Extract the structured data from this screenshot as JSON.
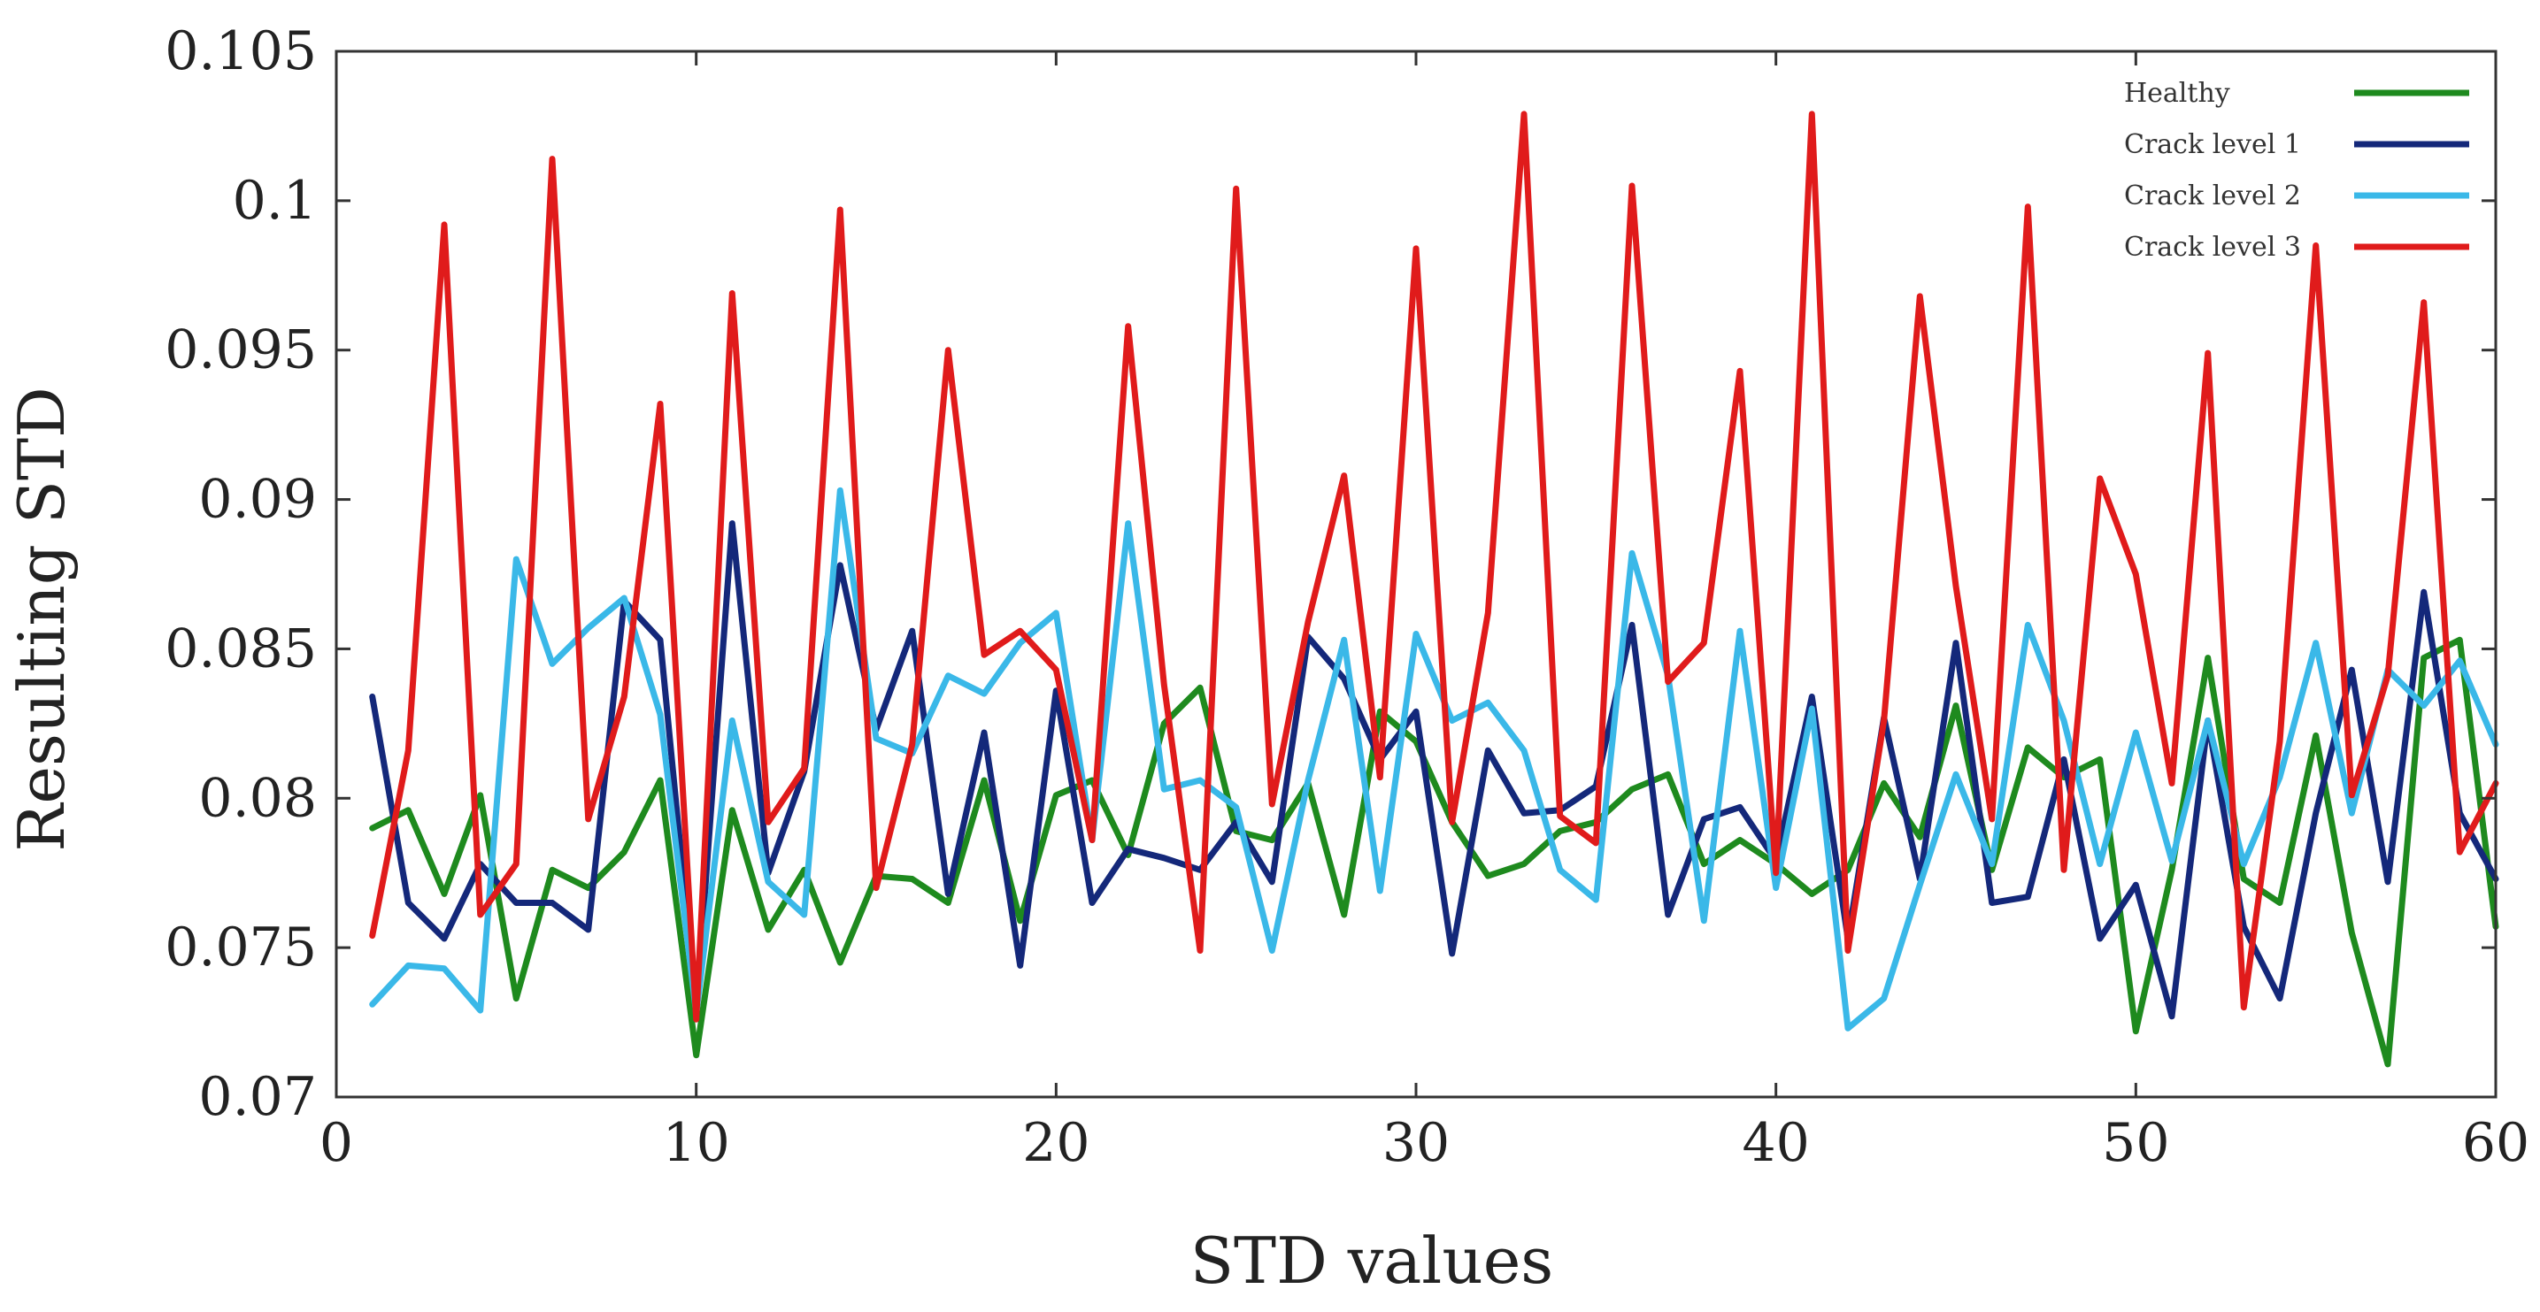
{
  "chart_data": {
    "type": "line",
    "title": "",
    "xlabel": "STD values",
    "ylabel": "Resulting STD",
    "xlim": [
      0,
      60
    ],
    "ylim": [
      0.07,
      0.105
    ],
    "xticks": [
      0,
      10,
      20,
      30,
      40,
      50,
      60
    ],
    "xtick_labels": [
      "0",
      "10",
      "20",
      "30",
      "40",
      "50",
      "60"
    ],
    "yticks": [
      0.07,
      0.075,
      0.08,
      0.085,
      0.09,
      0.095,
      0.1,
      0.105
    ],
    "ytick_labels": [
      "0.07",
      "0.075",
      "0.08",
      "0.085",
      "0.09",
      "0.095",
      "0.1",
      "0.105"
    ],
    "grid": false,
    "legend_position": "top-right",
    "x": [
      1,
      2,
      3,
      4,
      5,
      6,
      7,
      8,
      9,
      10,
      11,
      12,
      13,
      14,
      15,
      16,
      17,
      18,
      19,
      20,
      21,
      22,
      23,
      24,
      25,
      26,
      27,
      28,
      29,
      30,
      31,
      32,
      33,
      34,
      35,
      36,
      37,
      38,
      39,
      40,
      41,
      42,
      43,
      44,
      45,
      46,
      47,
      48,
      49,
      50,
      51,
      52,
      53,
      54,
      55,
      56,
      57,
      58,
      59,
      60
    ],
    "series": [
      {
        "name": "Healthy",
        "color": "#1e8a1e",
        "values": [
          0.079,
          0.0796,
          0.0768,
          0.0801,
          0.0733,
          0.0776,
          0.077,
          0.0782,
          0.0806,
          0.0714,
          0.0796,
          0.0756,
          0.0776,
          0.0745,
          0.0774,
          0.0773,
          0.0765,
          0.0806,
          0.0759,
          0.0801,
          0.0806,
          0.0781,
          0.0825,
          0.0837,
          0.0789,
          0.0786,
          0.0805,
          0.0761,
          0.0829,
          0.0819,
          0.0792,
          0.0774,
          0.0778,
          0.0789,
          0.0792,
          0.0803,
          0.0808,
          0.0778,
          0.0786,
          0.0778,
          0.0768,
          0.0776,
          0.0805,
          0.0787,
          0.0831,
          0.0776,
          0.0817,
          0.0807,
          0.0813,
          0.0722,
          0.0776,
          0.0847,
          0.0773,
          0.0765,
          0.0821,
          0.0755,
          0.0711,
          0.0847,
          0.0853,
          0.0757
        ]
      },
      {
        "name": "Crack level 1",
        "color": "#14287a",
        "values": [
          0.0834,
          0.0765,
          0.0753,
          0.0778,
          0.0765,
          0.0765,
          0.0756,
          0.0866,
          0.0853,
          0.0729,
          0.0892,
          0.0775,
          0.0809,
          0.0878,
          0.0823,
          0.0856,
          0.0768,
          0.0822,
          0.0744,
          0.0836,
          0.0765,
          0.0783,
          0.078,
          0.0776,
          0.0792,
          0.0772,
          0.0854,
          0.084,
          0.0813,
          0.0829,
          0.0748,
          0.0816,
          0.0795,
          0.0796,
          0.0804,
          0.0858,
          0.0761,
          0.0793,
          0.0797,
          0.0779,
          0.0834,
          0.0753,
          0.0827,
          0.0773,
          0.0852,
          0.0765,
          0.0767,
          0.0813,
          0.0753,
          0.0771,
          0.0727,
          0.0826,
          0.0757,
          0.0733,
          0.0795,
          0.0843,
          0.0772,
          0.0869,
          0.0795,
          0.0773
        ]
      },
      {
        "name": "Crack level 2",
        "color": "#3ab8e8",
        "values": [
          0.0731,
          0.0744,
          0.0743,
          0.0729,
          0.088,
          0.0845,
          0.0857,
          0.0867,
          0.0828,
          0.0728,
          0.0826,
          0.0772,
          0.0761,
          0.0903,
          0.082,
          0.0815,
          0.0841,
          0.0835,
          0.0852,
          0.0862,
          0.0786,
          0.0892,
          0.0803,
          0.0806,
          0.0797,
          0.0749,
          0.0806,
          0.0853,
          0.0769,
          0.0855,
          0.0826,
          0.0832,
          0.0816,
          0.0776,
          0.0766,
          0.0882,
          0.0841,
          0.0759,
          0.0856,
          0.077,
          0.083,
          0.0723,
          0.0733,
          0.0771,
          0.0808,
          0.0778,
          0.0858,
          0.0826,
          0.0778,
          0.0822,
          0.0779,
          0.0826,
          0.0778,
          0.0807,
          0.0852,
          0.0795,
          0.0843,
          0.0831,
          0.0846,
          0.0818
        ]
      },
      {
        "name": "Crack level 3",
        "color": "#e01b1b",
        "values": [
          0.0754,
          0.0816,
          0.0992,
          0.0761,
          0.0778,
          0.1014,
          0.0793,
          0.0834,
          0.0932,
          0.0726,
          0.0969,
          0.0792,
          0.081,
          0.0997,
          0.077,
          0.0818,
          0.095,
          0.0848,
          0.0856,
          0.0843,
          0.0786,
          0.0958,
          0.0838,
          0.0749,
          0.1004,
          0.0798,
          0.0859,
          0.0908,
          0.0807,
          0.0984,
          0.0792,
          0.0862,
          0.1029,
          0.0794,
          0.0785,
          0.1005,
          0.0839,
          0.0852,
          0.0943,
          0.0775,
          0.1029,
          0.0749,
          0.0826,
          0.0968,
          0.0871,
          0.0793,
          0.0998,
          0.0776,
          0.0907,
          0.0875,
          0.0805,
          0.0949,
          0.073,
          0.0819,
          0.0985,
          0.0801,
          0.0841,
          0.0966,
          0.0782,
          0.0805
        ]
      }
    ]
  }
}
